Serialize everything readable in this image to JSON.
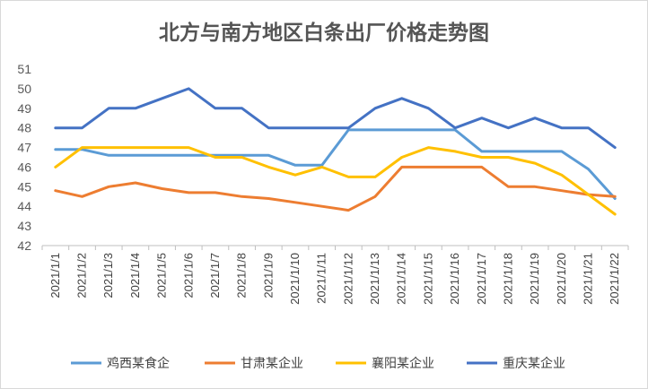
{
  "chart_data": {
    "type": "line",
    "title": "北方与南方地区白条出厂价格走势图",
    "categories": [
      "2021/1/1",
      "2021/1/2",
      "2021/1/3",
      "2021/1/4",
      "2021/1/5",
      "2021/1/6",
      "2021/1/7",
      "2021/1/8",
      "2021/1/9",
      "2021/1/10",
      "2021/1/11",
      "2021/1/12",
      "2021/1/13",
      "2021/1/14",
      "2021/1/15",
      "2021/1/16",
      "2021/1/17",
      "2021/1/18",
      "2021/1/19",
      "2021/1/20",
      "2021/1/21",
      "2021/1/22"
    ],
    "ylim": [
      42,
      51
    ],
    "yticks": [
      42,
      43,
      44,
      45,
      46,
      47,
      48,
      49,
      50,
      51
    ],
    "grid": false,
    "legend_position": "bottom",
    "series": [
      {
        "name": "鸡西某食企",
        "color": "#5B9BD5",
        "values": [
          46.9,
          46.9,
          46.6,
          46.6,
          46.6,
          46.6,
          46.6,
          46.6,
          46.6,
          46.1,
          46.1,
          47.9,
          47.9,
          47.9,
          47.9,
          47.9,
          46.8,
          46.8,
          46.8,
          46.8,
          45.9,
          44.4
        ]
      },
      {
        "name": "甘肃某企业",
        "color": "#ED7D31",
        "values": [
          44.8,
          44.5,
          45.0,
          45.2,
          44.9,
          44.7,
          44.7,
          44.5,
          44.4,
          44.2,
          44.0,
          43.8,
          44.5,
          46.0,
          46.0,
          46.0,
          46.0,
          45.0,
          45.0,
          44.8,
          44.6,
          44.5
        ]
      },
      {
        "name": "襄阳某企业",
        "color": "#FFC000",
        "values": [
          46.0,
          47.0,
          47.0,
          47.0,
          47.0,
          47.0,
          46.5,
          46.5,
          46.0,
          45.6,
          46.0,
          45.5,
          45.5,
          46.5,
          47.0,
          46.8,
          46.5,
          46.5,
          46.2,
          45.6,
          44.6,
          43.6
        ]
      },
      {
        "name": "重庆某企业",
        "color": "#4472C4",
        "values": [
          48.0,
          48.0,
          49.0,
          49.0,
          49.5,
          50.0,
          49.0,
          49.0,
          48.0,
          48.0,
          48.0,
          48.0,
          49.0,
          49.5,
          49.0,
          48.0,
          48.5,
          48.0,
          48.5,
          48.0,
          48.0,
          47.0
        ]
      }
    ]
  }
}
